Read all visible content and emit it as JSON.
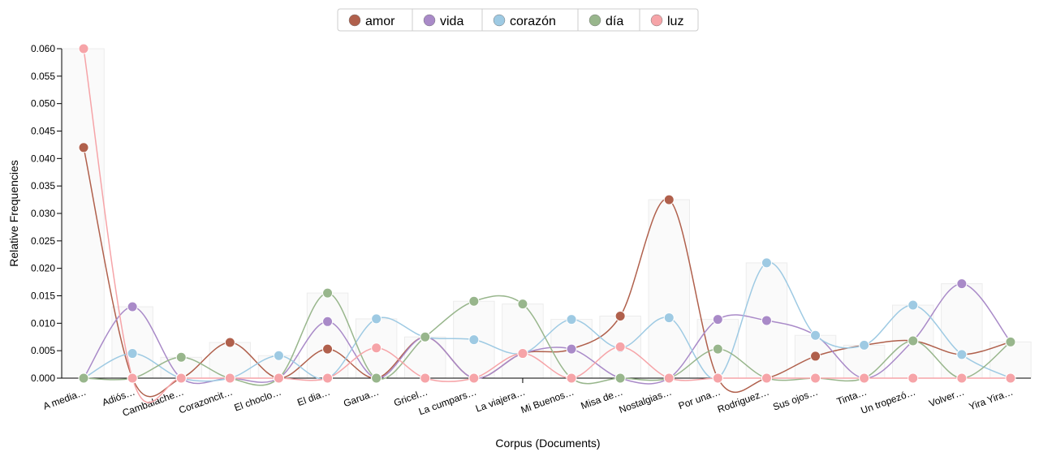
{
  "chart_data": {
    "type": "line",
    "x_label": "Corpus (Documents)",
    "y_label": "Relative Frequencies",
    "categories": [
      "A media…",
      "Adiós…",
      "Cambalache…",
      "Corazoncit…",
      "El choclo…",
      "El dia…",
      "Garua…",
      "Gricel…",
      "La cumpars…",
      "La viajera…",
      "Mi Buenos…",
      "Misa de…",
      "Nostalgias…",
      "Por una…",
      "Rodriguez…",
      "Sus ojos…",
      "Tinta…",
      "Un tropezó…",
      "Volver…",
      "Yira Yira…"
    ],
    "series": [
      {
        "name": "amor",
        "color": "#b0604c",
        "values": [
          0.042,
          0,
          0,
          0.0065,
          0,
          0.0053,
          0,
          0.0075,
          0,
          0.0045,
          0.0053,
          0.0113,
          0.0325,
          0,
          0,
          0.004,
          0.006,
          0.0068,
          0.0043,
          0.0066
        ]
      },
      {
        "name": "vida",
        "color": "#a98ac8",
        "values": [
          0,
          0.013,
          0,
          0,
          0,
          0.0103,
          0,
          0.0075,
          0,
          0.0045,
          0.0053,
          0,
          0,
          0.0107,
          0.0105,
          0.0078,
          0,
          0.0068,
          0.0172,
          0.0066
        ]
      },
      {
        "name": "corazón",
        "color": "#9ecae3",
        "values": [
          0,
          0.0045,
          0,
          0,
          0.0041,
          0,
          0.0108,
          0.0075,
          0.007,
          0.0045,
          0.0107,
          0.0055,
          0.011,
          0,
          0.021,
          0.0078,
          0.006,
          0.0133,
          0.0043,
          0
        ]
      },
      {
        "name": "día",
        "color": "#98b68c",
        "values": [
          0,
          0,
          0.0038,
          0,
          0,
          0.0155,
          0,
          0.0075,
          0.014,
          0.0135,
          0,
          0,
          0,
          0.0053,
          0,
          0,
          0,
          0.0068,
          0,
          0.0066
        ]
      },
      {
        "name": "luz",
        "color": "#f6a4a8",
        "values": [
          0.06,
          0,
          0,
          0,
          0,
          0,
          0.0055,
          0,
          0,
          0.0045,
          0,
          0.0057,
          0,
          0,
          0,
          0,
          0,
          0,
          0,
          0
        ]
      }
    ],
    "ylim": [
      0,
      0.06
    ],
    "yticks": [
      {
        "value": 0,
        "label": "0.000"
      },
      0.005,
      {
        "value": 0.01,
        "label": "0.010"
      },
      0.015,
      {
        "value": 0.02,
        "label": "0.020"
      },
      0.025,
      {
        "value": 0.03,
        "label": "0.030"
      },
      0.035,
      {
        "value": 0.04,
        "label": "0.040"
      },
      0.045,
      {
        "value": 0.05,
        "label": "0.050"
      },
      0.055,
      {
        "value": 0.06,
        "label": "0.060"
      }
    ]
  }
}
